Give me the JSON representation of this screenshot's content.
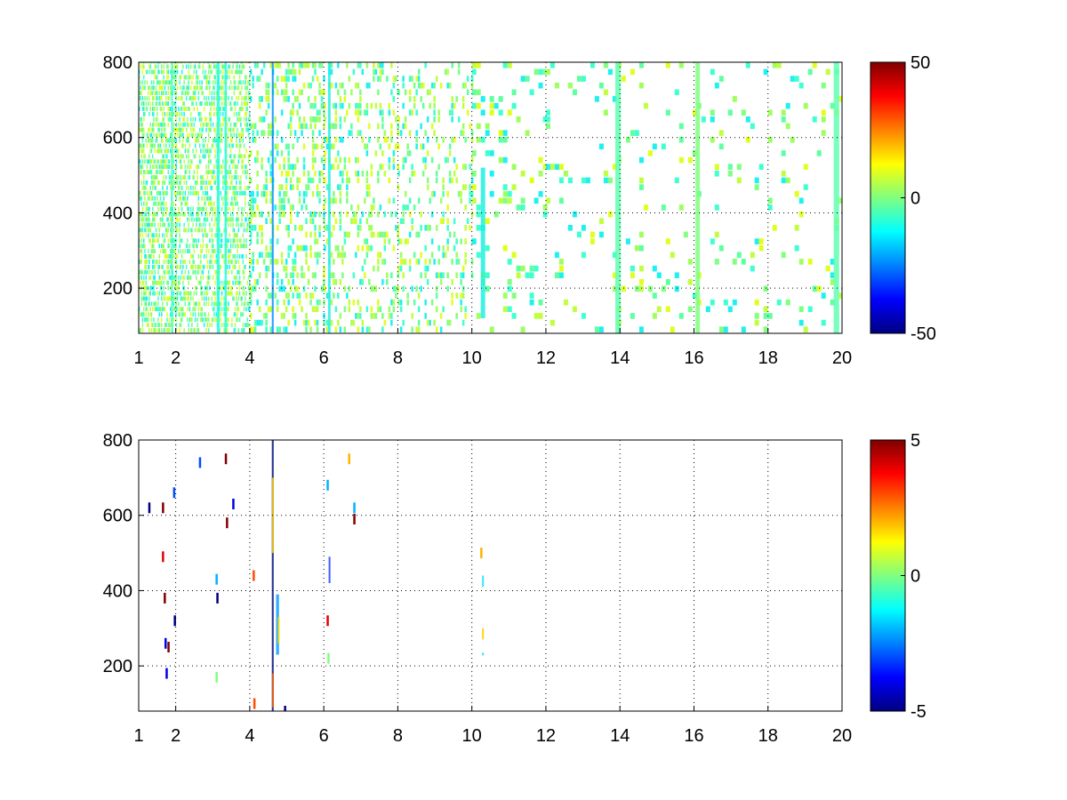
{
  "chart_data": [
    {
      "type": "heatmap",
      "title": "",
      "xlabel": "",
      "ylabel": "",
      "xlim": [
        1,
        20
      ],
      "ylim": [
        80,
        800
      ],
      "x_ticks": [
        "1",
        "2",
        "4",
        "6",
        "8",
        "10",
        "12",
        "14",
        "16",
        "18",
        "20"
      ],
      "y_ticks": [
        "200",
        "400",
        "600",
        "800"
      ],
      "grid": true,
      "colormap": "jet",
      "colorbar": {
        "min": -50,
        "max": 50,
        "ticks": [
          "-50",
          "0",
          "50"
        ]
      },
      "background": "#ffffff",
      "density_profile": [
        {
          "x": [
            1,
            2
          ],
          "fill": 0.5
        },
        {
          "x": [
            2,
            4
          ],
          "fill": 0.42
        },
        {
          "x": [
            4,
            6
          ],
          "fill": 0.33
        },
        {
          "x": [
            6,
            8
          ],
          "fill": 0.27
        },
        {
          "x": [
            8,
            10
          ],
          "fill": 0.2
        },
        {
          "x": [
            10,
            12
          ],
          "fill": 0.14
        },
        {
          "x": [
            12,
            20
          ],
          "fill": 0.09
        }
      ],
      "bands": [
        {
          "x": 1.9,
          "width": 0.05,
          "color": "#40ffd0"
        },
        {
          "x": 3.15,
          "width": 0.08,
          "color": "#20ffe0"
        },
        {
          "x": 3.35,
          "width": 0.06,
          "color": "#20ffe0"
        },
        {
          "x": 4.62,
          "width": 0.05,
          "color": "#0090ff"
        },
        {
          "x": 6.15,
          "width": 0.07,
          "color": "#20f0e0"
        },
        {
          "x": 10.3,
          "width": 0.12,
          "color": "#20f0e0",
          "y": [
            120,
            520
          ]
        },
        {
          "x": 13.95,
          "width": 0.15,
          "color": "#60ffb0"
        },
        {
          "x": 16.1,
          "width": 0.12,
          "color": "#80ff80"
        },
        {
          "x": 19.85,
          "width": 0.15,
          "color": "#60ffb0"
        }
      ]
    },
    {
      "type": "heatmap",
      "title": "",
      "xlabel": "",
      "ylabel": "",
      "xlim": [
        1,
        20
      ],
      "ylim": [
        80,
        800
      ],
      "x_ticks": [
        "1",
        "2",
        "4",
        "6",
        "8",
        "10",
        "12",
        "14",
        "16",
        "18",
        "20"
      ],
      "y_ticks": [
        "200",
        "400",
        "600",
        "800"
      ],
      "grid": true,
      "colormap": "jet",
      "colorbar": {
        "min": -5,
        "max": 5,
        "ticks": [
          "-5",
          "0",
          "5"
        ]
      },
      "background": "#ffffff",
      "bands": [
        {
          "x": 4.62,
          "width": 0.05,
          "color": "#001080",
          "y": [
            80,
            800
          ]
        },
        {
          "x": 4.62,
          "width": 0.04,
          "color": "#ffd000",
          "y": [
            500,
            700
          ]
        },
        {
          "x": 4.62,
          "width": 0.04,
          "color": "#ff6000",
          "y": [
            90,
            180
          ]
        },
        {
          "x": 4.75,
          "width": 0.08,
          "color": "#10a0ff",
          "y": [
            230,
            390
          ]
        },
        {
          "x": 4.78,
          "width": 0.04,
          "color": "#ffe000",
          "y": [
            260,
            330
          ]
        },
        {
          "x": 6.15,
          "width": 0.04,
          "color": "#2040ff",
          "y": [
            420,
            490
          ]
        },
        {
          "x": 10.3,
          "width": 0.05,
          "color": "#20e0ff",
          "y": [
            410,
            440
          ]
        },
        {
          "x": 10.3,
          "width": 0.05,
          "color": "#20e0ff",
          "y": [
            228,
            235
          ]
        },
        {
          "x": 10.3,
          "width": 0.05,
          "color": "#ffd000",
          "y": [
            270,
            300
          ]
        }
      ],
      "points": [
        {
          "x": 1.28,
          "y": 620,
          "value": -5
        },
        {
          "x": 1.65,
          "y": 620,
          "value": 5
        },
        {
          "x": 1.65,
          "y": 490,
          "value": 4
        },
        {
          "x": 1.7,
          "y": 380,
          "value": 5
        },
        {
          "x": 1.72,
          "y": 260,
          "value": -4
        },
        {
          "x": 1.75,
          "y": 180,
          "value": -4
        },
        {
          "x": 1.8,
          "y": 250,
          "value": 5
        },
        {
          "x": 1.95,
          "y": 660,
          "value": -3
        },
        {
          "x": 1.97,
          "y": 320,
          "value": -5
        },
        {
          "x": 2.65,
          "y": 740,
          "value": -3
        },
        {
          "x": 3.1,
          "y": 430,
          "value": -2
        },
        {
          "x": 3.12,
          "y": 380,
          "value": -5
        },
        {
          "x": 3.1,
          "y": 170,
          "value": 0
        },
        {
          "x": 3.35,
          "y": 750,
          "value": 5
        },
        {
          "x": 3.38,
          "y": 580,
          "value": 5
        },
        {
          "x": 3.55,
          "y": 630,
          "value": -4
        },
        {
          "x": 4.1,
          "y": 440,
          "value": 3
        },
        {
          "x": 4.12,
          "y": 100,
          "value": 3
        },
        {
          "x": 4.95,
          "y": 80,
          "value": -5
        },
        {
          "x": 6.1,
          "y": 680,
          "value": -2
        },
        {
          "x": 6.1,
          "y": 320,
          "value": 4
        },
        {
          "x": 6.12,
          "y": 220,
          "value": 0
        },
        {
          "x": 6.68,
          "y": 750,
          "value": 2
        },
        {
          "x": 6.82,
          "y": 620,
          "value": -2
        },
        {
          "x": 6.82,
          "y": 590,
          "value": 5
        },
        {
          "x": 10.25,
          "y": 500,
          "value": 2
        }
      ]
    }
  ]
}
